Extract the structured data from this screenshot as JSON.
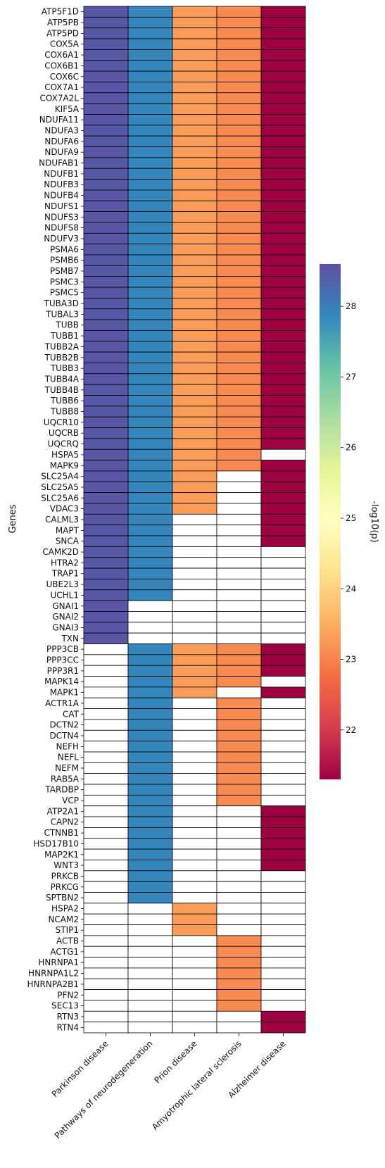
{
  "chart_data": {
    "type": "heatmap",
    "ylabel": "Genes",
    "colorbar_label": "-log10(p)",
    "colorbar_ticks": [
      22,
      23,
      24,
      25,
      26,
      27,
      28
    ],
    "colorbar_range": [
      21.3,
      28.6
    ],
    "colormap": "Spectral",
    "missing_color": "#ffffff",
    "x_categories": [
      "Parkinson disease",
      "Pathways of neurodegeneration",
      "Prion disease",
      "Amyotrophic lateral sclerosis",
      "Alzheimer disease"
    ],
    "column_values": [
      28.5,
      27.9,
      23.3,
      23.1,
      21.3
    ],
    "genes": [
      {
        "name": "ATP5F1D",
        "present": [
          1,
          1,
          1,
          1,
          1
        ]
      },
      {
        "name": "ATP5PB",
        "present": [
          1,
          1,
          1,
          1,
          1
        ]
      },
      {
        "name": "ATP5PD",
        "present": [
          1,
          1,
          1,
          1,
          1
        ]
      },
      {
        "name": "COX5A",
        "present": [
          1,
          1,
          1,
          1,
          1
        ]
      },
      {
        "name": "COX6A1",
        "present": [
          1,
          1,
          1,
          1,
          1
        ]
      },
      {
        "name": "COX6B1",
        "present": [
          1,
          1,
          1,
          1,
          1
        ]
      },
      {
        "name": "COX6C",
        "present": [
          1,
          1,
          1,
          1,
          1
        ]
      },
      {
        "name": "COX7A1",
        "present": [
          1,
          1,
          1,
          1,
          1
        ]
      },
      {
        "name": "COX7A2L",
        "present": [
          1,
          1,
          1,
          1,
          1
        ]
      },
      {
        "name": "KIF5A",
        "present": [
          1,
          1,
          1,
          1,
          1
        ]
      },
      {
        "name": "NDUFA11",
        "present": [
          1,
          1,
          1,
          1,
          1
        ]
      },
      {
        "name": "NDUFA3",
        "present": [
          1,
          1,
          1,
          1,
          1
        ]
      },
      {
        "name": "NDUFA6",
        "present": [
          1,
          1,
          1,
          1,
          1
        ]
      },
      {
        "name": "NDUFA9",
        "present": [
          1,
          1,
          1,
          1,
          1
        ]
      },
      {
        "name": "NDUFAB1",
        "present": [
          1,
          1,
          1,
          1,
          1
        ]
      },
      {
        "name": "NDUFB1",
        "present": [
          1,
          1,
          1,
          1,
          1
        ]
      },
      {
        "name": "NDUFB3",
        "present": [
          1,
          1,
          1,
          1,
          1
        ]
      },
      {
        "name": "NDUFB4",
        "present": [
          1,
          1,
          1,
          1,
          1
        ]
      },
      {
        "name": "NDUFS1",
        "present": [
          1,
          1,
          1,
          1,
          1
        ]
      },
      {
        "name": "NDUFS3",
        "present": [
          1,
          1,
          1,
          1,
          1
        ]
      },
      {
        "name": "NDUFS8",
        "present": [
          1,
          1,
          1,
          1,
          1
        ]
      },
      {
        "name": "NDUFV3",
        "present": [
          1,
          1,
          1,
          1,
          1
        ]
      },
      {
        "name": "PSMA6",
        "present": [
          1,
          1,
          1,
          1,
          1
        ]
      },
      {
        "name": "PSMB6",
        "present": [
          1,
          1,
          1,
          1,
          1
        ]
      },
      {
        "name": "PSMB7",
        "present": [
          1,
          1,
          1,
          1,
          1
        ]
      },
      {
        "name": "PSMC3",
        "present": [
          1,
          1,
          1,
          1,
          1
        ]
      },
      {
        "name": "PSMC5",
        "present": [
          1,
          1,
          1,
          1,
          1
        ]
      },
      {
        "name": "TUBA3D",
        "present": [
          1,
          1,
          1,
          1,
          1
        ]
      },
      {
        "name": "TUBAL3",
        "present": [
          1,
          1,
          1,
          1,
          1
        ]
      },
      {
        "name": "TUBB",
        "present": [
          1,
          1,
          1,
          1,
          1
        ]
      },
      {
        "name": "TUBB1",
        "present": [
          1,
          1,
          1,
          1,
          1
        ]
      },
      {
        "name": "TUBB2A",
        "present": [
          1,
          1,
          1,
          1,
          1
        ]
      },
      {
        "name": "TUBB2B",
        "present": [
          1,
          1,
          1,
          1,
          1
        ]
      },
      {
        "name": "TUBB3",
        "present": [
          1,
          1,
          1,
          1,
          1
        ]
      },
      {
        "name": "TUBB4A",
        "present": [
          1,
          1,
          1,
          1,
          1
        ]
      },
      {
        "name": "TUBB4B",
        "present": [
          1,
          1,
          1,
          1,
          1
        ]
      },
      {
        "name": "TUBB6",
        "present": [
          1,
          1,
          1,
          1,
          1
        ]
      },
      {
        "name": "TUBB8",
        "present": [
          1,
          1,
          1,
          1,
          1
        ]
      },
      {
        "name": "UQCR10",
        "present": [
          1,
          1,
          1,
          1,
          1
        ]
      },
      {
        "name": "UQCRB",
        "present": [
          1,
          1,
          1,
          1,
          1
        ]
      },
      {
        "name": "UQCRQ",
        "present": [
          1,
          1,
          1,
          1,
          1
        ]
      },
      {
        "name": "HSPA5",
        "present": [
          1,
          1,
          1,
          1,
          0
        ]
      },
      {
        "name": "MAPK9",
        "present": [
          1,
          1,
          1,
          1,
          1
        ]
      },
      {
        "name": "SLC25A4",
        "present": [
          1,
          1,
          1,
          0,
          1
        ]
      },
      {
        "name": "SLC25A5",
        "present": [
          1,
          1,
          1,
          0,
          1
        ]
      },
      {
        "name": "SLC25A6",
        "present": [
          1,
          1,
          1,
          0,
          1
        ]
      },
      {
        "name": "VDAC3",
        "present": [
          1,
          1,
          1,
          0,
          1
        ]
      },
      {
        "name": "CALML3",
        "present": [
          1,
          1,
          0,
          0,
          1
        ]
      },
      {
        "name": "MAPT",
        "present": [
          1,
          1,
          0,
          0,
          1
        ]
      },
      {
        "name": "SNCA",
        "present": [
          1,
          1,
          0,
          0,
          1
        ]
      },
      {
        "name": "CAMK2D",
        "present": [
          1,
          1,
          0,
          0,
          0
        ]
      },
      {
        "name": "HTRA2",
        "present": [
          1,
          1,
          0,
          0,
          0
        ]
      },
      {
        "name": "TRAP1",
        "present": [
          1,
          1,
          0,
          0,
          0
        ]
      },
      {
        "name": "UBE2L3",
        "present": [
          1,
          1,
          0,
          0,
          0
        ]
      },
      {
        "name": "UCHL1",
        "present": [
          1,
          1,
          0,
          0,
          0
        ]
      },
      {
        "name": "GNAI1",
        "present": [
          1,
          0,
          0,
          0,
          0
        ]
      },
      {
        "name": "GNAI2",
        "present": [
          1,
          0,
          0,
          0,
          0
        ]
      },
      {
        "name": "GNAI3",
        "present": [
          1,
          0,
          0,
          0,
          0
        ]
      },
      {
        "name": "TXN",
        "present": [
          1,
          0,
          0,
          0,
          0
        ]
      },
      {
        "name": "PPP3CB",
        "present": [
          0,
          1,
          1,
          1,
          1
        ]
      },
      {
        "name": "PPP3CC",
        "present": [
          0,
          1,
          1,
          1,
          1
        ]
      },
      {
        "name": "PPP3R1",
        "present": [
          0,
          1,
          1,
          1,
          1
        ]
      },
      {
        "name": "MAPK14",
        "present": [
          0,
          1,
          1,
          1,
          0
        ]
      },
      {
        "name": "MAPK1",
        "present": [
          0,
          1,
          1,
          0,
          1
        ]
      },
      {
        "name": "ACTR1A",
        "present": [
          0,
          1,
          0,
          1,
          0
        ]
      },
      {
        "name": "CAT",
        "present": [
          0,
          1,
          0,
          1,
          0
        ]
      },
      {
        "name": "DCTN2",
        "present": [
          0,
          1,
          0,
          1,
          0
        ]
      },
      {
        "name": "DCTN4",
        "present": [
          0,
          1,
          0,
          1,
          0
        ]
      },
      {
        "name": "NEFH",
        "present": [
          0,
          1,
          0,
          1,
          0
        ]
      },
      {
        "name": "NEFL",
        "present": [
          0,
          1,
          0,
          1,
          0
        ]
      },
      {
        "name": "NEFM",
        "present": [
          0,
          1,
          0,
          1,
          0
        ]
      },
      {
        "name": "RAB5A",
        "present": [
          0,
          1,
          0,
          1,
          0
        ]
      },
      {
        "name": "TARDBP",
        "present": [
          0,
          1,
          0,
          1,
          0
        ]
      },
      {
        "name": "VCP",
        "present": [
          0,
          1,
          0,
          1,
          0
        ]
      },
      {
        "name": "ATP2A1",
        "present": [
          0,
          1,
          0,
          0,
          1
        ]
      },
      {
        "name": "CAPN2",
        "present": [
          0,
          1,
          0,
          0,
          1
        ]
      },
      {
        "name": "CTNNB1",
        "present": [
          0,
          1,
          0,
          0,
          1
        ]
      },
      {
        "name": "HSD17B10",
        "present": [
          0,
          1,
          0,
          0,
          1
        ]
      },
      {
        "name": "MAP2K1",
        "present": [
          0,
          1,
          0,
          0,
          1
        ]
      },
      {
        "name": "WNT3",
        "present": [
          0,
          1,
          0,
          0,
          1
        ]
      },
      {
        "name": "PRKCB",
        "present": [
          0,
          1,
          0,
          0,
          0
        ]
      },
      {
        "name": "PRKCG",
        "present": [
          0,
          1,
          0,
          0,
          0
        ]
      },
      {
        "name": "SPTBN2",
        "present": [
          0,
          1,
          0,
          0,
          0
        ]
      },
      {
        "name": "HSPA2",
        "present": [
          0,
          0,
          1,
          0,
          0
        ]
      },
      {
        "name": "NCAM2",
        "present": [
          0,
          0,
          1,
          0,
          0
        ]
      },
      {
        "name": "STIP1",
        "present": [
          0,
          0,
          1,
          0,
          0
        ]
      },
      {
        "name": "ACTB",
        "present": [
          0,
          0,
          0,
          1,
          0
        ]
      },
      {
        "name": "ACTG1",
        "present": [
          0,
          0,
          0,
          1,
          0
        ]
      },
      {
        "name": "HNRNPA1",
        "present": [
          0,
          0,
          0,
          1,
          0
        ]
      },
      {
        "name": "HNRNPA1L2",
        "present": [
          0,
          0,
          0,
          1,
          0
        ]
      },
      {
        "name": "HNRNPA2B1",
        "present": [
          0,
          0,
          0,
          1,
          0
        ]
      },
      {
        "name": "PFN2",
        "present": [
          0,
          0,
          0,
          1,
          0
        ]
      },
      {
        "name": "SEC13",
        "present": [
          0,
          0,
          0,
          1,
          0
        ]
      },
      {
        "name": "RTN3",
        "present": [
          0,
          0,
          0,
          0,
          1
        ]
      },
      {
        "name": "RTN4",
        "present": [
          0,
          0,
          0,
          0,
          1
        ]
      }
    ]
  }
}
